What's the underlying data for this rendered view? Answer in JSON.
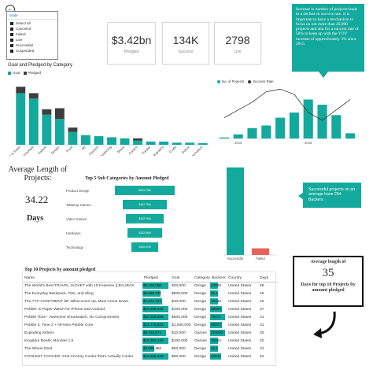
{
  "slicer": {
    "title": "State",
    "options": [
      "Select all",
      "Canceled",
      "Failed",
      "Live",
      "Successful",
      "Suspended"
    ]
  },
  "kpis": [
    {
      "value": "$3.42bn",
      "label": "Pledged"
    },
    {
      "value": "134K",
      "label": "Success"
    },
    {
      "value": "2798",
      "label": "Live"
    }
  ],
  "insight_top": "Increase in number of projects leads to a decline in success rate. It is important to have a mechanism to focus on not more than 20,000 projects and aim for a success rate of 58% to keep up with the YOY increase of approximately 3% since 2015.",
  "insight_backers": "Successful projects on an average have 264 Backers",
  "colors": {
    "teal": "#13a99d",
    "dark": "#3d3d3d",
    "gray_bar": "#bfbfbf",
    "red": "#e8625a"
  },
  "chart_data": [
    {
      "type": "bar",
      "title": "Goal and Pledged by Category",
      "legend": [
        "Goal",
        "Pledged"
      ],
      "categories": [
        "Film & Video",
        "Technology",
        "Games",
        "Design",
        "Food",
        "Art",
        "Fashion",
        "Publishing",
        "Music",
        "Comics",
        "Theater",
        "Photography",
        "Crafts",
        "Dance",
        "Journalism"
      ],
      "series": [
        {
          "name": "Pledged",
          "values": [
            48,
            43,
            28,
            24,
            12,
            9,
            8,
            7,
            6,
            4,
            3,
            3,
            2,
            2,
            1.5
          ]
        },
        {
          "name": "Goal",
          "values": [
            6,
            5,
            5,
            10,
            4,
            0,
            0,
            0,
            0,
            2,
            0,
            0,
            0,
            0,
            0
          ]
        }
      ],
      "ylim": [
        0,
        60
      ]
    },
    {
      "type": "bar",
      "title": "",
      "legend": [
        "No. of Projects",
        "Success Rate"
      ],
      "years": [
        2009,
        2010,
        2011,
        2012,
        2013,
        2014,
        2015,
        2016,
        2017,
        2018
      ],
      "x_tick_labels": [
        "2010",
        "2015"
      ],
      "bars": [
        2,
        8,
        20,
        25,
        40,
        50,
        75,
        65,
        45,
        10
      ],
      "line": [
        40,
        55,
        70,
        90,
        95,
        85,
        50,
        35,
        55,
        75
      ],
      "ylim": [
        0,
        100
      ]
    },
    {
      "type": "bar",
      "title": "Top 5 Sub Categories by Amount Pledged",
      "categories": [
        "Product Design",
        "Tabletop Games",
        "Video Games",
        "Hardware",
        "Technology"
      ],
      "values": [
        224.79,
        167.79,
        142.76,
        132.84,
        100.07
      ],
      "value_labels": [
        "$224.79M",
        "$167.79M",
        "$142.76M",
        "$132.84M",
        "$100.07M"
      ]
    },
    {
      "type": "bar",
      "title": "",
      "categories": [
        "Successful",
        "Failed"
      ],
      "values": [
        264,
        20
      ]
    }
  ],
  "avg_length": {
    "label": "Average Length of Projects:",
    "value": "34.22",
    "unit": "Days"
  },
  "top10": {
    "title": "Top 10 Projects by amount pledged",
    "columns": [
      "Name",
      "Pledged",
      "Goal",
      "Category",
      "Backers",
      "Country",
      "Days"
    ],
    "rows": [
      {
        "name": "The World's Best TRAVEL JACKET with 15 Features || BAUBAX",
        "pledged": "$9,192,056",
        "pf": 1.0,
        "goal": "$20,000",
        "category": "Design",
        "backers": "44949",
        "bf": 0.52,
        "country": "United States",
        "days": "58"
      },
      {
        "name": "The Everyday Backpack, Tote, and Sling",
        "pledged": "$6,565,782",
        "pf": 0.71,
        "goal": "$500,000",
        "category": "Design",
        "backers": "32,1",
        "bf": 0.38,
        "country": "United States",
        "days": "45"
      },
      {
        "name": "The 7TH CONTINENT â€“ What Goes Up, Must Come Down.",
        "pledged": "$7,072,757",
        "pf": 0.77,
        "goal": "$40,000",
        "category": "Design",
        "backers": "43733",
        "bf": 0.5,
        "country": "United States",
        "days": "25"
      },
      {
        "name": "Pebble: E-Paper Watch for iPhone and Android",
        "pledged": "$10,266,845",
        "pf": 1.0,
        "goal": "$100,000",
        "category": "Design",
        "backers": "68929",
        "bf": 0.8,
        "country": "United States",
        "days": "37"
      },
      {
        "name": "Pebble Time - Awesome Smartwatch, No Compromises",
        "pledged": "$20,338,986",
        "pf": 1.0,
        "goal": "$500,000",
        "category": "Design",
        "backers": "78471",
        "bf": 1.0,
        "country": "United States",
        "days": "31"
      },
      {
        "name": "Pebble 2, Time 2 + All-New Pebble Core",
        "pledged": "$12,779,843",
        "pf": 1.0,
        "goal": "$1,000,000",
        "category": "Design",
        "backers": "66673",
        "bf": 0.77,
        "country": "United States",
        "days": "31"
      },
      {
        "name": "Exploding Kittens",
        "pledged": "$8,782,571",
        "pf": 0.9,
        "goal": "$10,000",
        "category": "Games",
        "backers": "219382",
        "bf": 1.0,
        "country": "United States",
        "days": "30"
      },
      {
        "name": "Kingdom Death: Monster 1.5",
        "pledged": "$12,393,140",
        "pf": 1.0,
        "goal": "$100,000",
        "category": "Games",
        "backers": "19264",
        "bf": 0.25,
        "country": "United States",
        "days": "20"
      },
      {
        "name": "The Wheel Deal",
        "pledged": "$3,985,482",
        "pf": 0.45,
        "goal": "$50,000",
        "category": "Design",
        "backers": "16,1",
        "bf": 0.2,
        "country": "United States",
        "days": "31"
      },
      {
        "name": "COOLEST COOLER: 21st Century Cooler that's Actually Cooler",
        "pledged": "$13,285,226",
        "pf": 1.0,
        "goal": "$50,000",
        "category": "Design",
        "backers": "62642",
        "bf": 0.72,
        "country": "United States",
        "days": "52"
      }
    ]
  },
  "avg_box": {
    "title": "Average length of",
    "value": "35",
    "caption": "Days for top 10 Projects by amount pledged"
  }
}
